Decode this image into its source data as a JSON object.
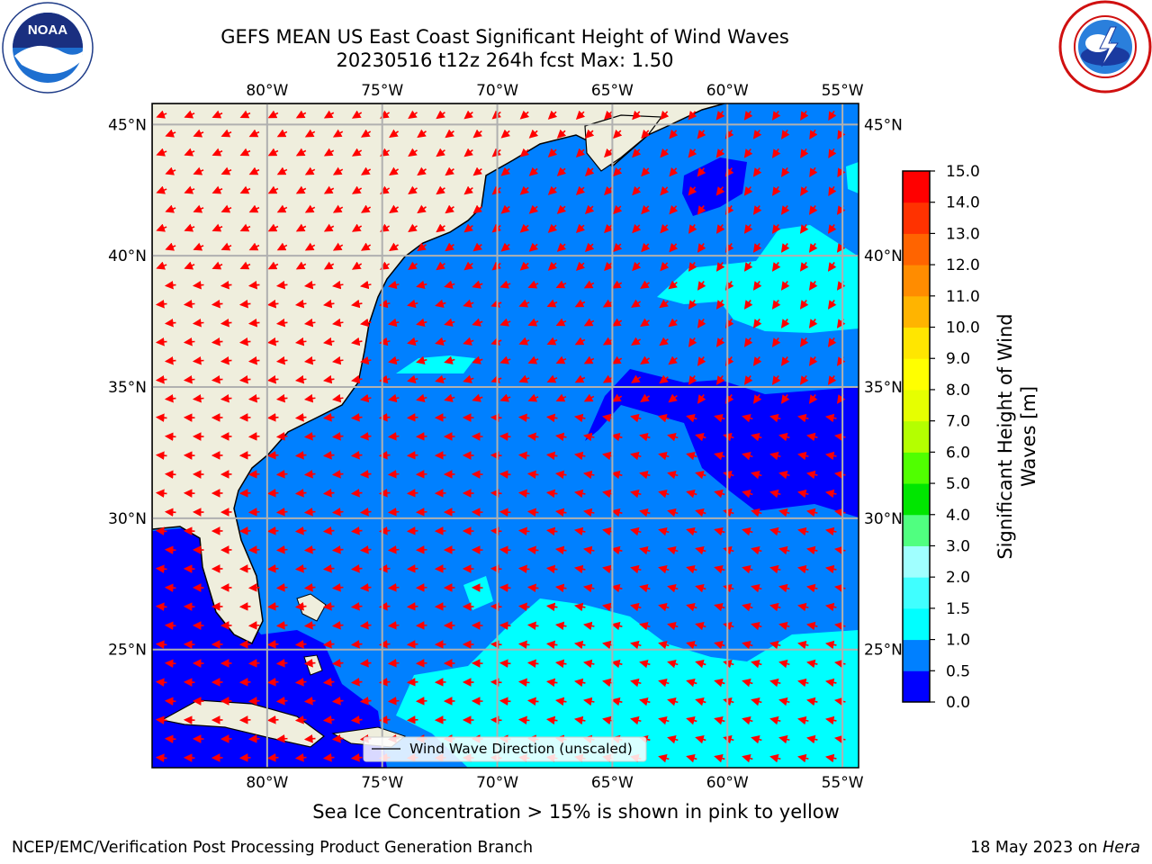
{
  "title": {
    "line1": "GEFS MEAN US East Coast Significant Height of Wind Waves",
    "line2": "20230516 t12z 264h fcst   Max: 1.50"
  },
  "map": {
    "lon_range": [
      -85,
      -54.3
    ],
    "lat_range": [
      20.5,
      45.8
    ],
    "lon_ticks": [
      -80,
      -75,
      -70,
      -65,
      -60,
      -55
    ],
    "lon_labels": [
      "80°W",
      "75°W",
      "70°W",
      "65°W",
      "60°W",
      "55°W"
    ],
    "lat_ticks": [
      25,
      30,
      35,
      40,
      45
    ],
    "lat_labels": [
      "25°N",
      "30°N",
      "35°N",
      "40°N",
      "45°N"
    ],
    "land_color": "#efeedd",
    "legend_label": "Wind Wave Direction (unscaled)",
    "arrow_color": "#ff0000"
  },
  "colorbar": {
    "levels": [
      "0.0",
      "0.5",
      "1.0",
      "1.5",
      "2.0",
      "3.0",
      "4.0",
      "5.0",
      "6.0",
      "7.0",
      "8.0",
      "9.0",
      "10.0",
      "11.0",
      "12.0",
      "13.0",
      "14.0",
      "15.0"
    ],
    "colors": [
      "#0000ff",
      "#0080ff",
      "#00ffff",
      "#40ffff",
      "#a0ffff",
      "#50ff80",
      "#00e600",
      "#50ff00",
      "#b4ff00",
      "#e6ff00",
      "#ffff00",
      "#ffe600",
      "#ffb400",
      "#ff8c00",
      "#ff6400",
      "#ff3200",
      "#ff0000"
    ],
    "label_line1": "Significant Height of Wind",
    "label_line2": "Waves [m]"
  },
  "note": "Sea Ice Concentration > 15% is shown in pink to yellow",
  "footer": {
    "left": "NCEP/EMC/Verification Post Processing Product Generation Branch",
    "right_date": "18 May 2023 on ",
    "right_host": "Hera"
  }
}
